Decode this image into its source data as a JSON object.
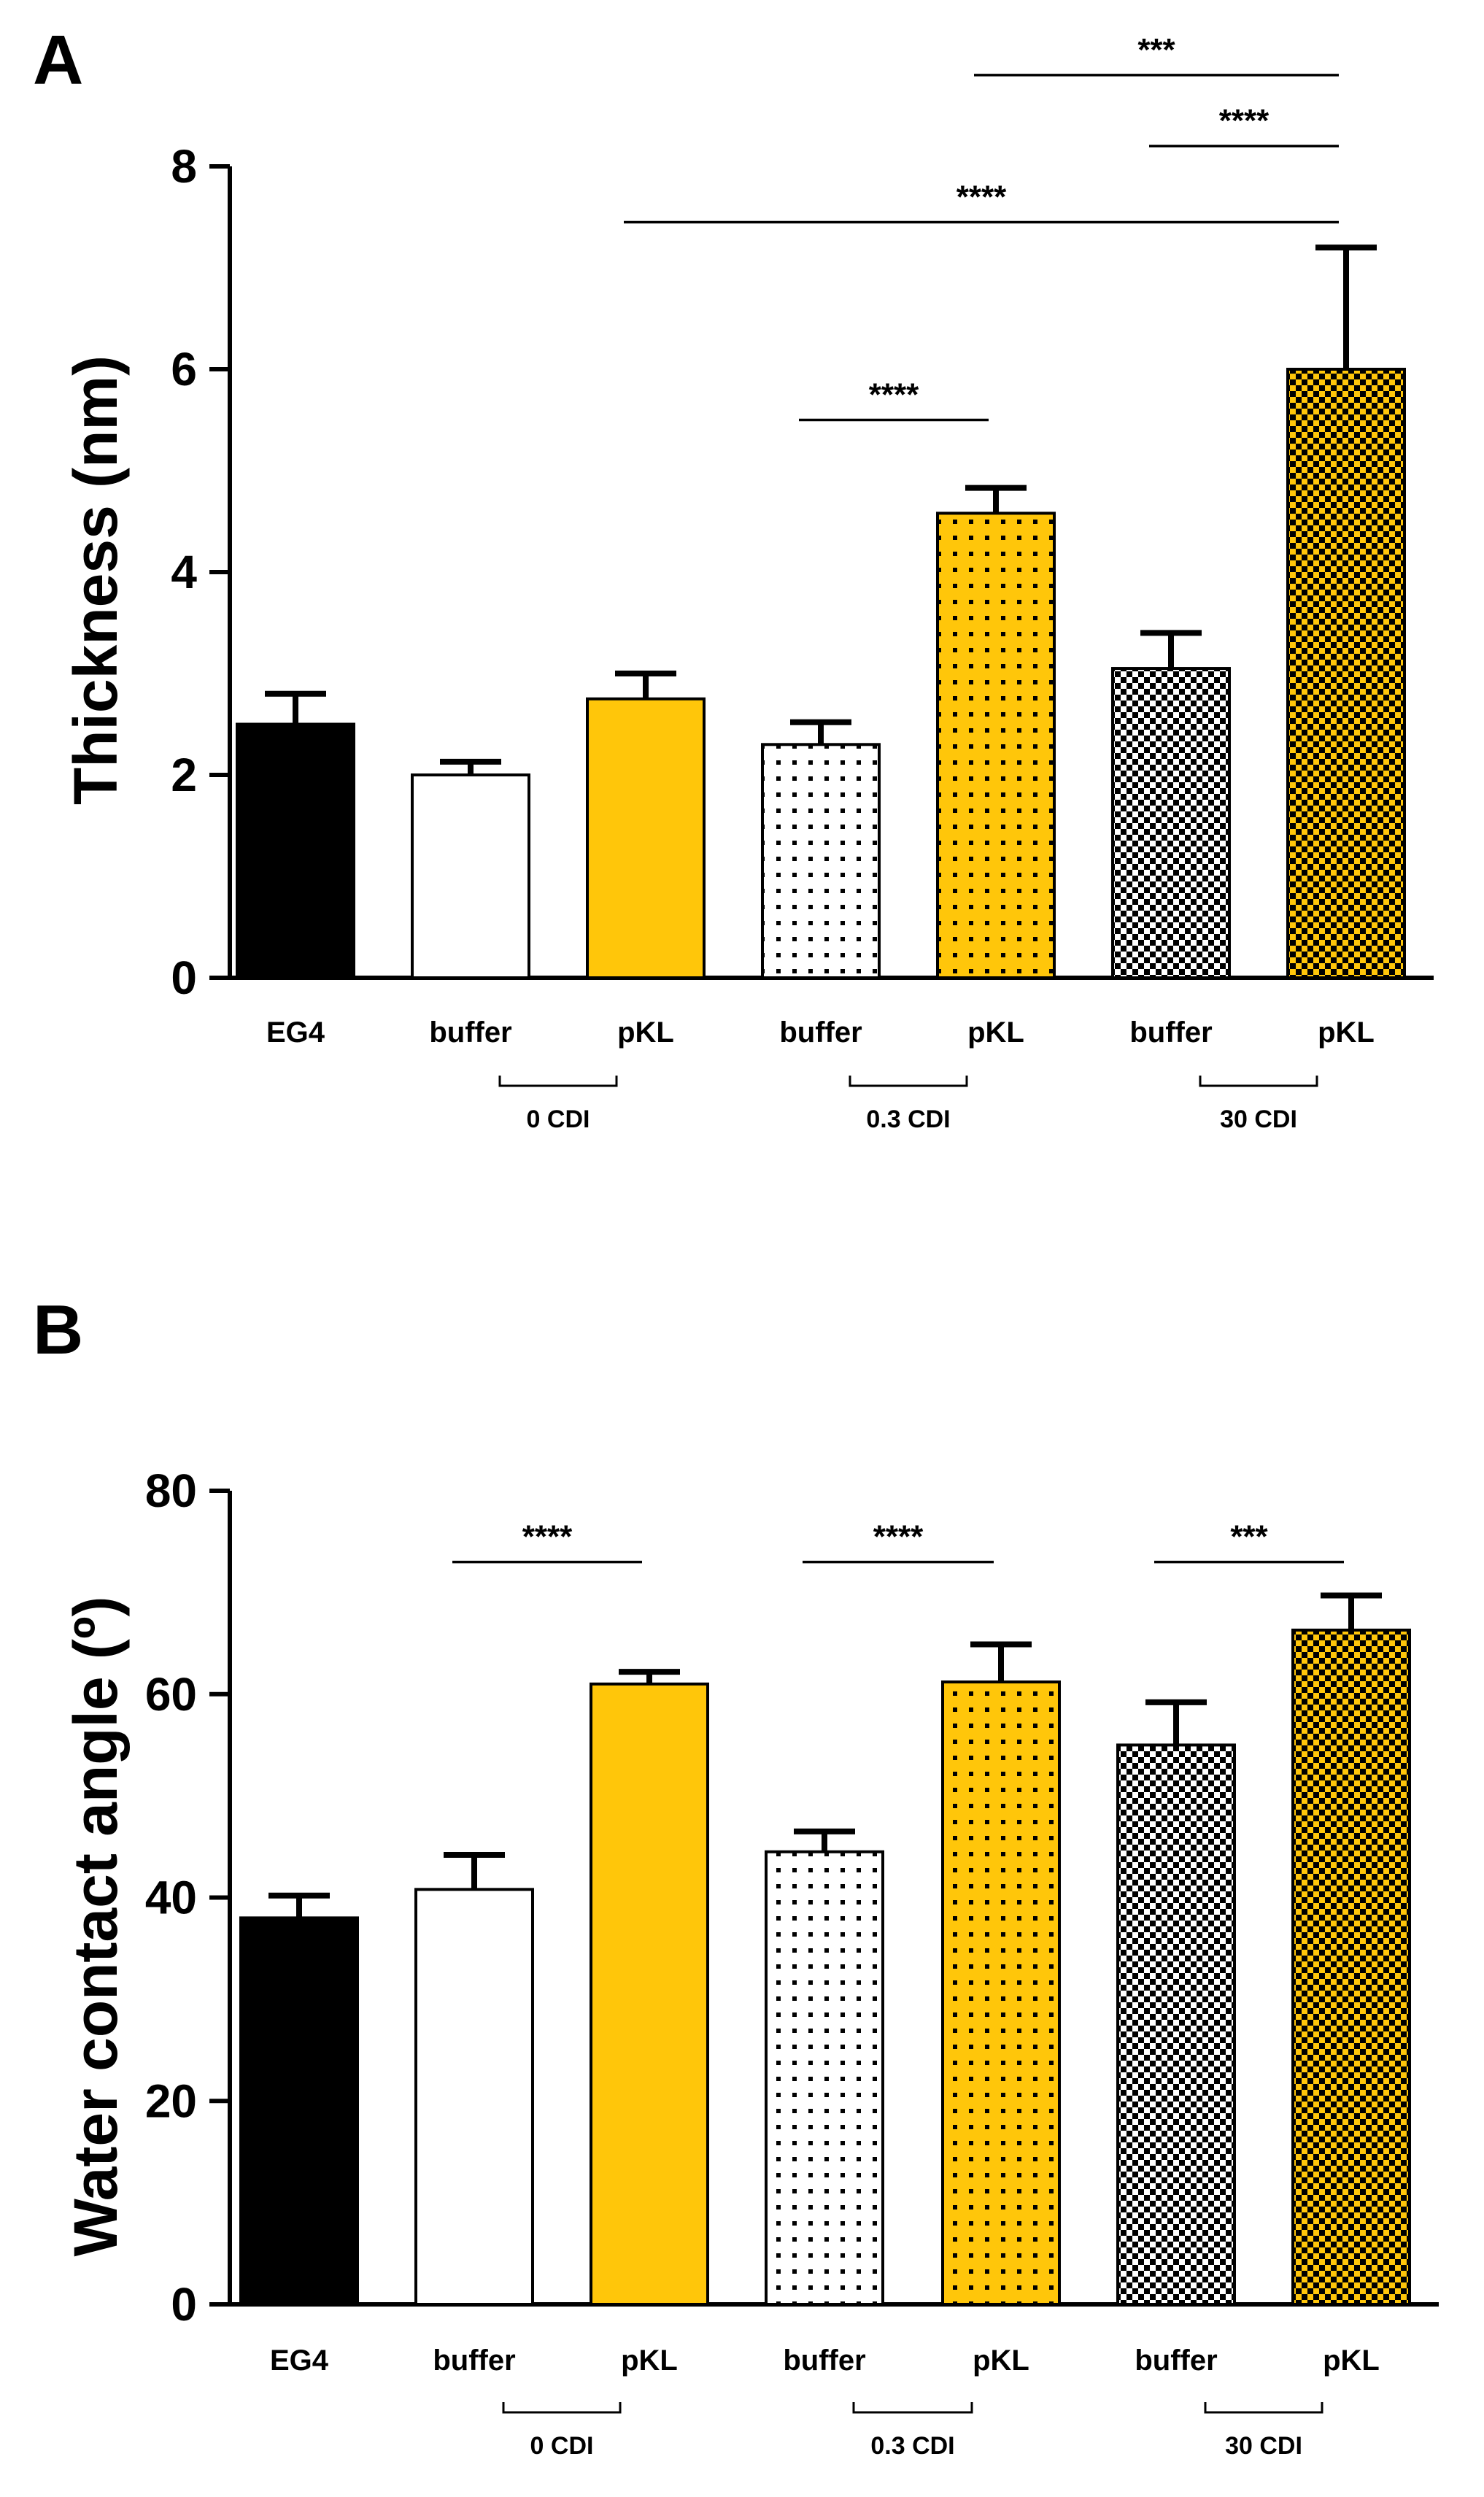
{
  "colors": {
    "black": "#000000",
    "white": "#ffffff",
    "yellow": "#ffc60a"
  },
  "chart_data": [
    {
      "panel": "A",
      "type": "bar",
      "ylabel": "Thickness (nm)",
      "ylim": [
        0,
        8
      ],
      "yticks": [
        "0",
        "2",
        "4",
        "6",
        "8"
      ],
      "categories": [
        "EG4",
        "buffer",
        "pKL",
        "buffer",
        "pKL",
        "buffer",
        "pKL"
      ],
      "values": [
        2.5,
        2.0,
        2.75,
        2.3,
        4.58,
        3.05,
        6.0
      ],
      "errors": [
        0.3,
        0.13,
        0.25,
        0.22,
        0.25,
        0.35,
        1.2
      ],
      "fills": [
        "solid-black",
        "white",
        "solid-yellow",
        "dots-white",
        "dots-yellow",
        "checker-white",
        "checker-yellow"
      ],
      "groups": [
        {
          "label": "0 CDI",
          "from": 1,
          "to": 2
        },
        {
          "label": "0.3 CDI",
          "from": 3,
          "to": 4
        },
        {
          "label": "30 CDI",
          "from": 5,
          "to": 6
        }
      ],
      "significance": [
        {
          "label": "****",
          "from": 3,
          "to": 4,
          "y": 5.5
        },
        {
          "label": "****",
          "from": 2,
          "to": 6,
          "y": 7.45
        },
        {
          "label": "****",
          "from": 5,
          "to": 6,
          "y": 8.2
        },
        {
          "label": "***",
          "from": 4,
          "to": 6,
          "y": 8.9
        }
      ]
    },
    {
      "panel": "B",
      "type": "bar",
      "ylabel": "Water contact angle (º)",
      "ylim": [
        0,
        80
      ],
      "yticks": [
        "0",
        "20",
        "40",
        "60",
        "80"
      ],
      "categories": [
        "EG4",
        "buffer",
        "pKL",
        "buffer",
        "pKL",
        "buffer",
        "pKL"
      ],
      "values": [
        38,
        40.8,
        61,
        44.5,
        61.2,
        55,
        66.3
      ],
      "errors": [
        2.2,
        3.4,
        1.2,
        2.0,
        3.7,
        4.2,
        3.4
      ],
      "fills": [
        "solid-black",
        "white",
        "solid-yellow",
        "dots-white",
        "dots-yellow",
        "checker-white",
        "checker-yellow"
      ],
      "groups": [
        {
          "label": "0 CDI",
          "from": 1,
          "to": 2
        },
        {
          "label": "0.3 CDI",
          "from": 3,
          "to": 4
        },
        {
          "label": "30 CDI",
          "from": 5,
          "to": 6
        }
      ],
      "significance": [
        {
          "label": "****",
          "from": 1,
          "to": 2,
          "y": 73
        },
        {
          "label": "****",
          "from": 3,
          "to": 4,
          "y": 73
        },
        {
          "label": "***",
          "from": 5,
          "to": 6,
          "y": 73
        }
      ]
    }
  ]
}
